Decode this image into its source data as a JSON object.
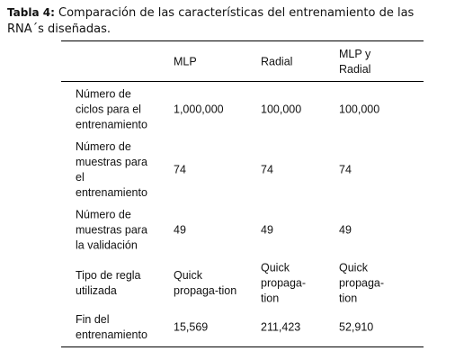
{
  "caption": {
    "label": "Tabla 4:",
    "text": [
      "Comparación de las características del entrenamiento de las",
      "RNA´s diseñadas."
    ]
  },
  "table": {
    "header": [
      [],
      [
        "MLP"
      ],
      [
        "Radial"
      ],
      [
        "MLP y",
        "Radial"
      ]
    ],
    "rows": [
      [
        [
          "Número de",
          "ciclos para el",
          "entrenamiento"
        ],
        [
          "1,000,000"
        ],
        [
          "100,000"
        ],
        [
          "100,000"
        ]
      ],
      [
        [
          "Número de",
          "muestras para",
          "el",
          "entrenamiento"
        ],
        [
          "74"
        ],
        [
          "74"
        ],
        [
          "74"
        ]
      ],
      [
        [
          "Número de",
          "muestras para",
          "la validación"
        ],
        [
          "49"
        ],
        [
          "49"
        ],
        [
          "49"
        ]
      ],
      [
        [
          "Tipo de regla",
          "utilizada"
        ],
        [
          "Quick",
          "propaga-tion"
        ],
        [
          "Quick",
          "propaga-",
          "tion"
        ],
        [
          "Quick",
          "propaga-",
          "tion"
        ]
      ],
      [
        [
          "Fin del",
          "entrenamiento"
        ],
        [
          "15,569"
        ],
        [
          "211,423"
        ],
        [
          "52,910"
        ]
      ]
    ]
  }
}
